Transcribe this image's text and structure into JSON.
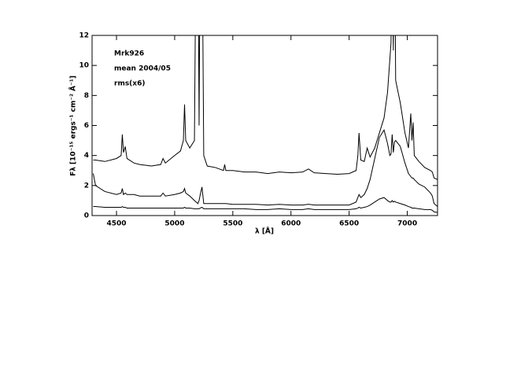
{
  "chart_data": {
    "type": "line",
    "xlabel": "λ [Å]",
    "ylabel": "Fλ [10⁻¹⁵ ergs⁻¹ cm⁻² Å⁻¹]",
    "annotations": [
      "Mrk926",
      "mean 2004/05",
      "rms(x6)"
    ],
    "x": [
      4300,
      4320,
      4400,
      4500,
      4540,
      4550,
      4560,
      4575,
      4590,
      4650,
      4700,
      4800,
      4880,
      4900,
      4920,
      5000,
      5050,
      5075,
      5085,
      5095,
      5130,
      5170,
      5185,
      5200,
      5210,
      5220,
      5235,
      5250,
      5280,
      5350,
      5420,
      5430,
      5440,
      5500,
      5600,
      5700,
      5800,
      5900,
      6000,
      6100,
      6150,
      6200,
      6300,
      6400,
      6500,
      6560,
      6575,
      6585,
      6600,
      6630,
      6655,
      6680,
      6720,
      6760,
      6800,
      6830,
      6850,
      6860,
      6870,
      6880,
      6890,
      6900,
      6940,
      6980,
      7010,
      7030,
      7040,
      7050,
      7060,
      7100,
      7150,
      7200,
      7215,
      7230,
      7260
    ],
    "series": [
      {
        "color": "#000000",
        "values": [
          3.7,
          3.7,
          3.6,
          3.8,
          4.0,
          5.4,
          4.2,
          4.6,
          3.8,
          3.5,
          3.4,
          3.3,
          3.4,
          3.8,
          3.5,
          4.0,
          4.3,
          5.0,
          7.4,
          5.0,
          4.5,
          5.0,
          20,
          20,
          6,
          20,
          20,
          4,
          3.3,
          3.2,
          3.0,
          3.4,
          3.0,
          3.0,
          2.9,
          2.9,
          2.8,
          2.9,
          2.85,
          2.9,
          3.1,
          2.85,
          2.8,
          2.75,
          2.8,
          3.0,
          4.0,
          5.5,
          3.7,
          3.6,
          4.5,
          3.9,
          4.5,
          5.5,
          6.5,
          8.2,
          10.4,
          11.5,
          20,
          11.0,
          20,
          9.0,
          7.5,
          5.5,
          4.5,
          6.8,
          5.0,
          6.2,
          4.0,
          3.6,
          3.2,
          3.0,
          2.9,
          2.5,
          2.4
        ]
      },
      {
        "color": "#000000",
        "values": [
          2.8,
          2.0,
          1.6,
          1.4,
          1.5,
          1.8,
          1.4,
          1.5,
          1.4,
          1.4,
          1.3,
          1.3,
          1.3,
          1.5,
          1.3,
          1.4,
          1.5,
          1.6,
          1.8,
          1.5,
          1.3,
          1.0,
          0.9,
          0.8,
          1.0,
          1.4,
          1.9,
          0.8,
          0.8,
          0.8,
          0.8,
          0.8,
          0.8,
          0.75,
          0.75,
          0.75,
          0.7,
          0.75,
          0.7,
          0.7,
          0.75,
          0.7,
          0.7,
          0.7,
          0.7,
          0.9,
          1.2,
          1.4,
          1.2,
          1.4,
          1.8,
          2.4,
          3.8,
          5.2,
          5.7,
          4.8,
          4.0,
          4.1,
          5.4,
          4.2,
          4.9,
          5.0,
          4.6,
          3.5,
          2.8,
          2.6,
          2.5,
          2.5,
          2.4,
          2.1,
          1.9,
          1.5,
          1.3,
          0.8,
          0.6
        ]
      },
      {
        "color": "#000000",
        "values": [
          0.6,
          0.6,
          0.55,
          0.55,
          0.55,
          0.6,
          0.55,
          0.55,
          0.5,
          0.5,
          0.5,
          0.5,
          0.5,
          0.5,
          0.5,
          0.5,
          0.5,
          0.5,
          0.55,
          0.5,
          0.5,
          0.45,
          0.45,
          0.45,
          0.45,
          0.5,
          0.55,
          0.45,
          0.45,
          0.45,
          0.45,
          0.45,
          0.45,
          0.45,
          0.45,
          0.4,
          0.4,
          0.45,
          0.4,
          0.4,
          0.45,
          0.4,
          0.4,
          0.4,
          0.4,
          0.45,
          0.5,
          0.55,
          0.5,
          0.55,
          0.6,
          0.7,
          0.9,
          1.1,
          1.2,
          1.0,
          0.9,
          0.9,
          1.0,
          0.9,
          0.95,
          0.9,
          0.8,
          0.7,
          0.6,
          0.55,
          0.5,
          0.5,
          0.5,
          0.45,
          0.4,
          0.4,
          0.35,
          0.25,
          0.2
        ]
      }
    ],
    "xlim": [
      4290,
      7260
    ],
    "ylim": [
      0,
      12
    ],
    "xticks": [
      4500,
      5000,
      5500,
      6000,
      6500,
      7000
    ],
    "yticks": [
      0,
      2,
      4,
      6,
      8,
      10,
      12
    ]
  }
}
